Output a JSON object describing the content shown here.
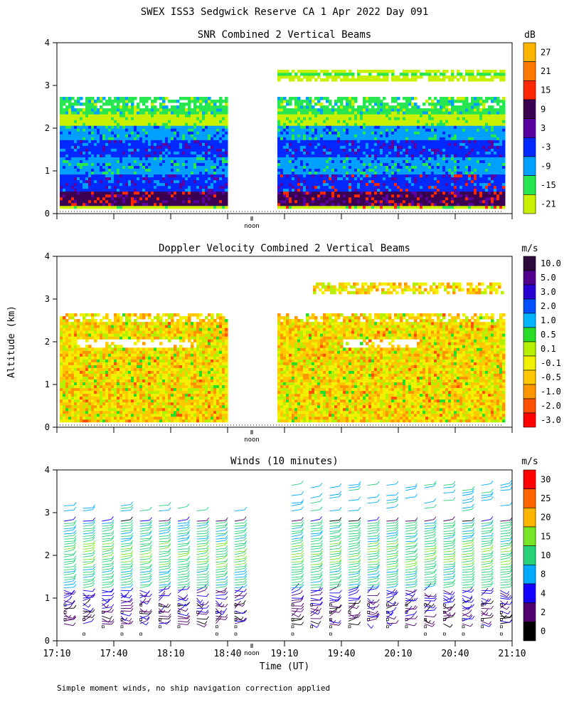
{
  "page": {
    "title": "SWEX ISS3 Sedgwick Reserve CA   1 Apr 2022 Day 091",
    "y_label": "Altitude (km)",
    "x_label": "Time (UT)",
    "footnote": "Simple moment winds, no ship navigation correction applied",
    "noon_label": "noon"
  },
  "chart_data": [
    {
      "type": "heatmap",
      "title": "SNR Combined 2 Vertical Beams",
      "unit": "dB",
      "ylim": [
        0,
        4
      ],
      "yticks": [
        0,
        1,
        2,
        3,
        4
      ],
      "xlim": [
        "17:10",
        "21:10"
      ],
      "data_gap": [
        "18:40",
        "19:10"
      ],
      "data_top_km": [
        2.7,
        3.5
      ],
      "colorbar": {
        "labels": [
          "27",
          "21",
          "15",
          "9",
          "3",
          "-3",
          "-9",
          "-15",
          "-21"
        ],
        "colors": [
          "#ffb400",
          "#ff7800",
          "#ff2800",
          "#3c0050",
          "#5a00a0",
          "#0028ff",
          "#00a0ff",
          "#28e650",
          "#c8f000"
        ]
      },
      "layers_km": [
        {
          "from": 0.15,
          "to": 0.5,
          "dB": 9
        },
        {
          "from": 0.5,
          "to": 0.9,
          "dB": -3
        },
        {
          "from": 0.9,
          "to": 1.3,
          "dB": -9
        },
        {
          "from": 1.3,
          "to": 1.7,
          "dB": -3
        },
        {
          "from": 1.7,
          "to": 2.0,
          "dB": -9
        },
        {
          "from": 2.0,
          "to": 2.3,
          "dB": -21
        },
        {
          "from": 2.3,
          "to": 2.7,
          "dB": -15
        }
      ]
    },
    {
      "type": "heatmap",
      "title": "Doppler Velocity Combined 2 Vertical Beams",
      "unit": "m/s",
      "ylim": [
        0,
        4
      ],
      "yticks": [
        0,
        1,
        2,
        3,
        4
      ],
      "xlim": [
        "17:10",
        "21:10"
      ],
      "data_gap": [
        "18:40",
        "19:10"
      ],
      "colorbar": {
        "labels": [
          "10.0",
          "5.0",
          "3.0",
          "2.0",
          "1.0",
          "0.5",
          "0.1",
          "-0.1",
          "-0.5",
          "-1.0",
          "-2.0",
          "-3.0"
        ],
        "colors": [
          "#2d0a3c",
          "#50008c",
          "#2800d2",
          "#0050ff",
          "#00b4ff",
          "#28dc28",
          "#b4f000",
          "#f0f000",
          "#ffc800",
          "#ff9600",
          "#ff5000",
          "#ff0000"
        ]
      },
      "typical_velocity_m_s": [
        -0.5,
        0.1
      ]
    },
    {
      "type": "scatter",
      "subtype": "wind barbs",
      "title": "Winds (10 minutes)",
      "unit": "m/s",
      "ylim": [
        0,
        4
      ],
      "yticks": [
        0,
        1,
        2,
        3,
        4
      ],
      "xticks": [
        "17:10",
        "17:40",
        "18:10",
        "18:40",
        "19:10",
        "19:40",
        "20:10",
        "20:40",
        "21:10"
      ],
      "colorbar": {
        "labels": [
          "30",
          "25",
          "20",
          "15",
          "10",
          "8",
          "4",
          "2",
          "0"
        ],
        "colors": [
          "#ff0000",
          "#ff6400",
          "#ffb400",
          "#78e628",
          "#28d278",
          "#00aaff",
          "#1400ff",
          "#50006e",
          "#000000"
        ]
      },
      "profile_times": [
        "17:10",
        "17:20",
        "17:30",
        "17:40",
        "17:50",
        "18:00",
        "18:10",
        "18:20",
        "18:30",
        "18:40",
        "19:10",
        "19:20",
        "19:30",
        "19:40",
        "19:50",
        "20:00",
        "20:10",
        "20:20",
        "20:30",
        "20:40",
        "20:50",
        "21:00"
      ],
      "speed_by_altitude_km": [
        {
          "from": 0.1,
          "to": 0.9,
          "speed": 2
        },
        {
          "from": 0.9,
          "to": 1.2,
          "speed": 4
        },
        {
          "from": 1.2,
          "to": 1.7,
          "speed": 10
        },
        {
          "from": 1.7,
          "to": 2.3,
          "speed": 12
        },
        {
          "from": 2.3,
          "to": 2.8,
          "speed": 10
        },
        {
          "from": 3.0,
          "to": 3.7,
          "speed": 8
        }
      ]
    }
  ]
}
